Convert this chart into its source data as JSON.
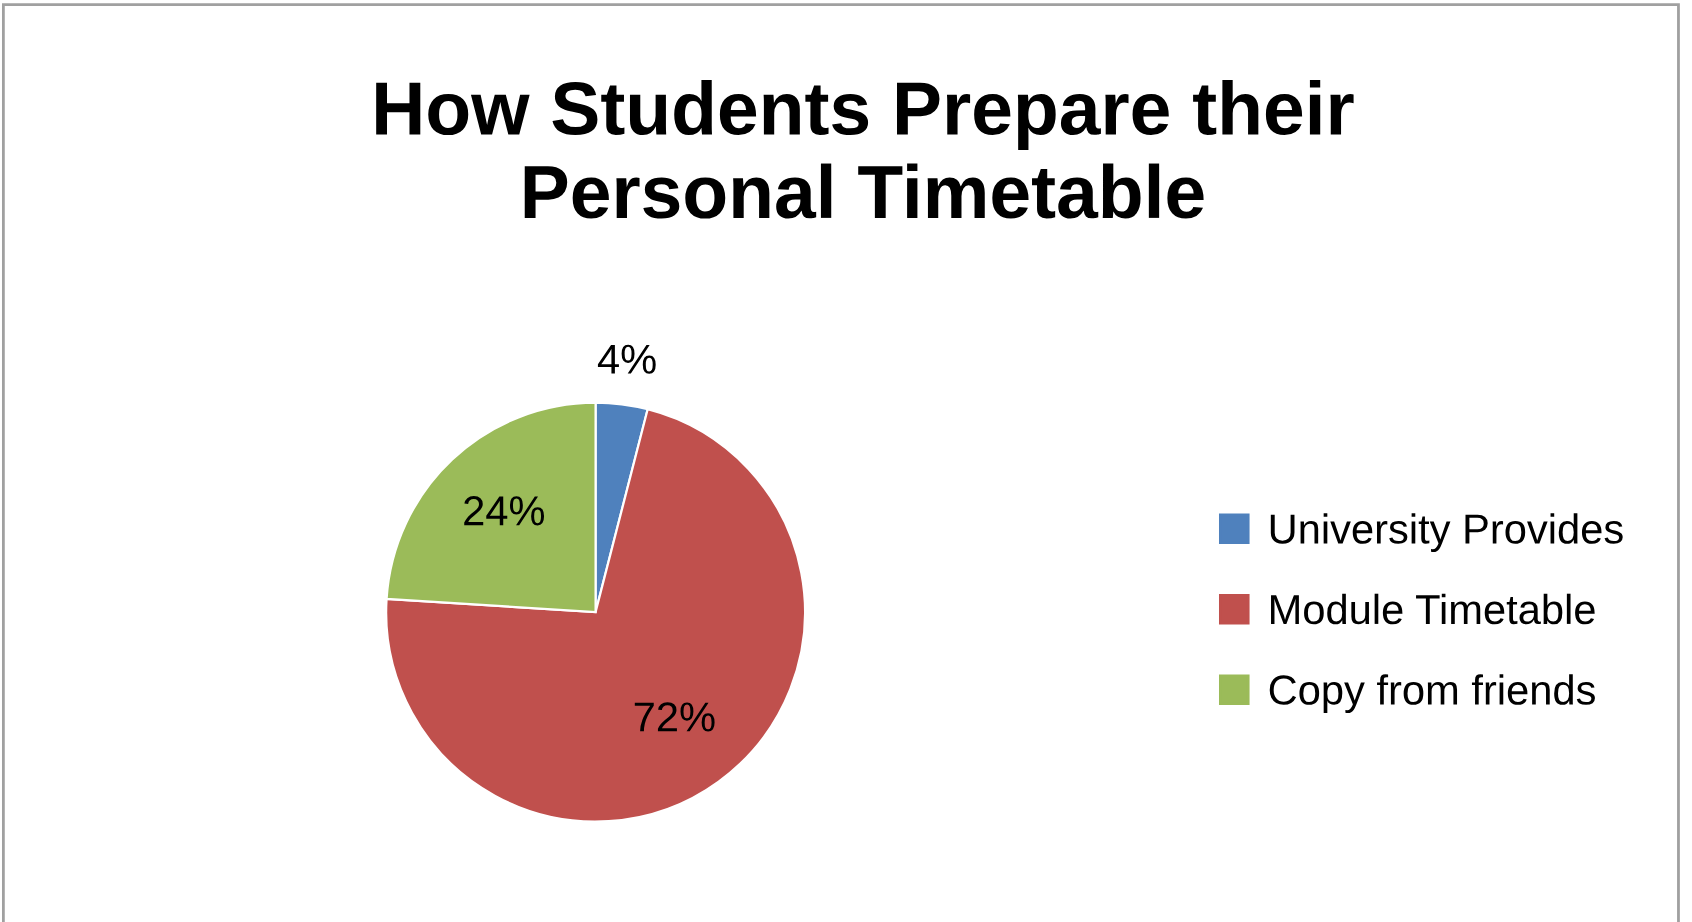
{
  "chart_data": {
    "type": "pie",
    "title": "How Students Prepare their\nPersonal Timetable",
    "categories": [
      "University Provides",
      "Module Timetable",
      "Copy from friends"
    ],
    "values": [
      4,
      72,
      24
    ],
    "colors": [
      "#4f81bd",
      "#c0504d",
      "#9bbb59"
    ],
    "value_labels": [
      "4%",
      "72%",
      "24%"
    ],
    "legend": "right"
  }
}
